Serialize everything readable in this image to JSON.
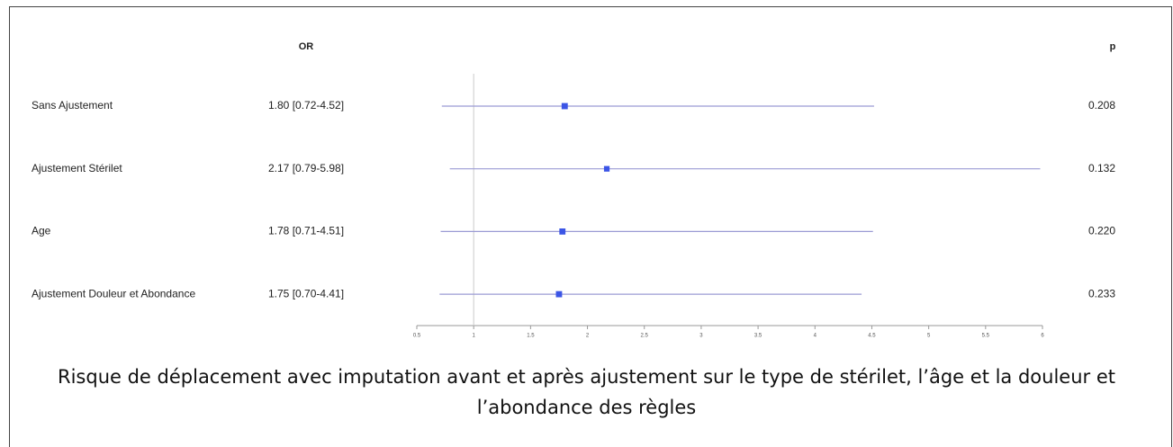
{
  "chart_data": {
    "type": "forest",
    "col_headers": {
      "estimate": "OR",
      "p": "p"
    },
    "categories": [
      "Sans Ajustement",
      "Ajustement Stérilet",
      "Age",
      "Ajustement Douleur et Abondance"
    ],
    "values": [
      1.8,
      2.17,
      1.78,
      1.75
    ],
    "lower": [
      0.72,
      0.79,
      0.71,
      0.7
    ],
    "upper": [
      4.52,
      5.98,
      4.51,
      4.41
    ],
    "value_labels": [
      "1.80 [0.72-4.52]",
      "2.17 [0.79-5.98]",
      "1.78 [0.71-4.51]",
      "1.75 [0.70-4.41]"
    ],
    "p": [
      "0.208",
      "0.132",
      "0.220",
      "0.233"
    ],
    "reference": 1,
    "xlim": [
      0.5,
      6
    ],
    "xticks": [
      0.5,
      1,
      1.5,
      2,
      2.5,
      3,
      3.5,
      4,
      4.5,
      5,
      5.5,
      6
    ],
    "color": "#3b55e6",
    "line_color": "#9b9bd4",
    "caption": "Risque de déplacement avec imputation avant et après ajustement sur le type de stérilet, l’âge et la douleur et l’abondance des règles"
  }
}
